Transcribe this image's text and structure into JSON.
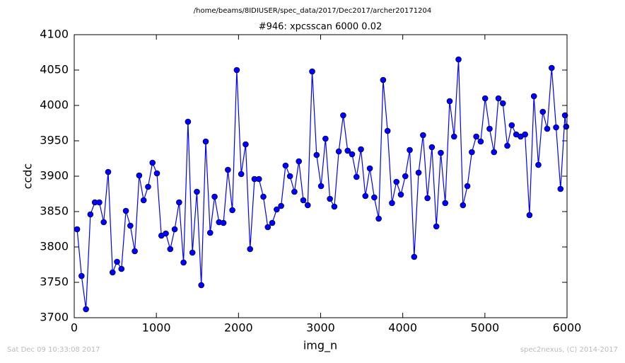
{
  "chart_data": {
    "type": "line",
    "title": "/home/beams/8IDIUSER/spec_data/2017/Dec2017/archer20171204",
    "subtitle": "#946: xpcsscan 6000 0.02",
    "x_label": "img_n",
    "y_label": "ccdc",
    "footer_left": "Sat Dec 09 10:33:08 2017",
    "footer_right": "spec2nexus, (C) 2014-2017",
    "xlim": [
      0,
      6000
    ],
    "xticks": [
      0,
      1000,
      2000,
      3000,
      4000,
      5000,
      6000
    ],
    "ylim": [
      3700,
      4100
    ],
    "yticks": [
      3700,
      3750,
      3800,
      3850,
      3900,
      3950,
      4000,
      4050,
      4100
    ],
    "grid": false,
    "series": [
      {
        "name": "ccdc",
        "color": "#0000ff",
        "x": [
          35,
          89,
          143,
          197,
          251,
          305,
          359,
          413,
          467,
          521,
          575,
          629,
          683,
          737,
          791,
          845,
          899,
          953,
          1007,
          1061,
          1115,
          1169,
          1223,
          1277,
          1331,
          1385,
          1439,
          1493,
          1547,
          1601,
          1655,
          1709,
          1763,
          1817,
          1871,
          1925,
          1979,
          2033,
          2087,
          2141,
          2195,
          2249,
          2303,
          2357,
          2411,
          2465,
          2519,
          2573,
          2627,
          2681,
          2735,
          2789,
          2843,
          2897,
          2951,
          3005,
          3059,
          3113,
          3167,
          3221,
          3275,
          3329,
          3383,
          3437,
          3491,
          3545,
          3599,
          3653,
          3707,
          3761,
          3815,
          3869,
          3923,
          3977,
          4031,
          4085,
          4139,
          4193,
          4247,
          4301,
          4355,
          4409,
          4463,
          4517,
          4571,
          4625,
          4679,
          4733,
          4787,
          4841,
          4895,
          4949,
          5003,
          5057,
          5111,
          5165,
          5219,
          5273,
          5327,
          5381,
          5435,
          5489,
          5543,
          5597,
          5651,
          5705,
          5759,
          5813,
          5867,
          5921,
          5975,
          5990
        ],
        "values": [
          3825,
          3759,
          3712,
          3846,
          3863,
          3863,
          3835,
          3906,
          3764,
          3779,
          3769,
          3851,
          3830,
          3794,
          3901,
          3866,
          3885,
          3919,
          3904,
          3816,
          3819,
          3797,
          3825,
          3863,
          3778,
          3977,
          3792,
          3878,
          3746,
          3949,
          3820,
          3871,
          3835,
          3834,
          3909,
          3852,
          4050,
          3903,
          3945,
          3797,
          3896,
          3896,
          3871,
          3828,
          3834,
          3853,
          3858,
          3915,
          3900,
          3878,
          3921,
          3866,
          3859,
          4048,
          3930,
          3886,
          3953,
          3868,
          3857,
          3935,
          3986,
          3936,
          3931,
          3899,
          3938,
          3872,
          3911,
          3870,
          3840,
          4036,
          3964,
          3862,
          3892,
          3874,
          3900,
          3937,
          3786,
          3905,
          3958,
          3869,
          3941,
          3829,
          3933,
          3862,
          4006,
          3956,
          4065,
          3859,
          3886,
          3934,
          3956,
          3949,
          4010,
          3967,
          3934,
          4010,
          4003,
          3943,
          3972,
          3959,
          3956,
          3959,
          3845,
          4013,
          3916,
          3991,
          3967,
          4053,
          3969,
          3882,
          3986,
          3970
        ]
      }
    ]
  }
}
